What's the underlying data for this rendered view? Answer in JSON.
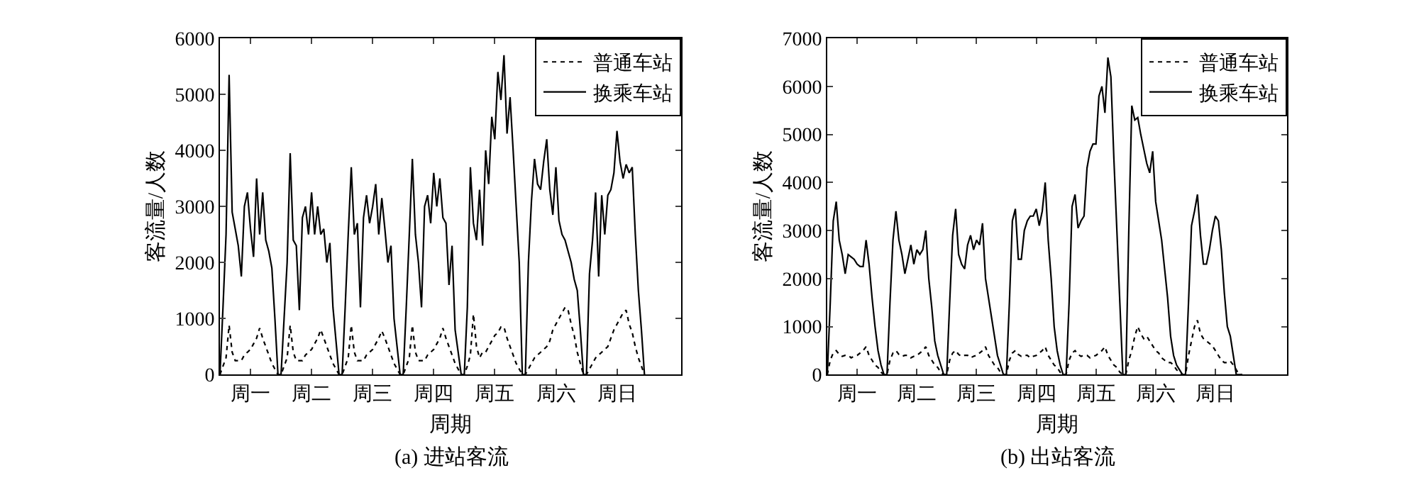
{
  "chart_data": [
    {
      "type": "line",
      "title": "(a) 进站客流",
      "xlabel": "周期",
      "ylabel": "客流量/人数",
      "ylim": [
        0,
        6000
      ],
      "categories": [
        null,
        null,
        null,
        null,
        null,
        null,
        null,
        null,
        null,
        null,
        "周一",
        null,
        null,
        null,
        null,
        null,
        null,
        null,
        null,
        null,
        null,
        null,
        null,
        null,
        null,
        null,
        null,
        null,
        null,
        null,
        "周二",
        null,
        null,
        null,
        null,
        null,
        null,
        null,
        null,
        null,
        null,
        null,
        null,
        null,
        null,
        null,
        null,
        null,
        null,
        null,
        "周三",
        null,
        null,
        null,
        null,
        null,
        null,
        null,
        null,
        null,
        null,
        null,
        null,
        null,
        null,
        null,
        null,
        null,
        null,
        null,
        "周四",
        null,
        null,
        null,
        null,
        null,
        null,
        null,
        null,
        null,
        null,
        null,
        null,
        null,
        null,
        null,
        null,
        null,
        null,
        null,
        "周五",
        null,
        null,
        null,
        null,
        null,
        null,
        null,
        null,
        null,
        null,
        null,
        null,
        null,
        null,
        null,
        null,
        null,
        null,
        null,
        "周六",
        null,
        null,
        null,
        null,
        null,
        null,
        null,
        null,
        null,
        null,
        null,
        null,
        null,
        null,
        null,
        null,
        null,
        null,
        null,
        "周日",
        null,
        null,
        null,
        null,
        null,
        null,
        null,
        null,
        null,
        null,
        null,
        null,
        null,
        null,
        null,
        null,
        null,
        null,
        null,
        null,
        null
      ],
      "yticks": [
        0,
        1000,
        2000,
        3000,
        4000,
        5000,
        6000
      ],
      "grid": false,
      "legend": "top right",
      "marker": "none",
      "series": [
        {
          "name": "普通车站",
          "color": "#000000",
          "line_style": "dotted",
          "values": [
            0,
            150,
            300,
            880,
            400,
            250,
            250,
            250,
            350,
            400,
            450,
            550,
            650,
            830,
            650,
            500,
            350,
            200,
            100,
            0,
            0,
            150,
            300,
            880,
            400,
            250,
            250,
            250,
            350,
            400,
            450,
            550,
            650,
            800,
            650,
            500,
            350,
            200,
            100,
            0,
            0,
            150,
            300,
            880,
            400,
            250,
            250,
            250,
            350,
            400,
            450,
            550,
            650,
            780,
            650,
            500,
            350,
            200,
            100,
            0,
            0,
            150,
            300,
            880,
            400,
            250,
            250,
            250,
            350,
            400,
            450,
            550,
            650,
            830,
            650,
            500,
            350,
            200,
            100,
            0,
            0,
            150,
            350,
            1080,
            500,
            300,
            400,
            400,
            500,
            600,
            700,
            750,
            850,
            850,
            650,
            500,
            350,
            200,
            100,
            0,
            0,
            100,
            200,
            300,
            350,
            400,
            450,
            500,
            600,
            800,
            900,
            1000,
            1100,
            1200,
            1150,
            900,
            700,
            400,
            200,
            0,
            0,
            100,
            200,
            300,
            350,
            400,
            450,
            500,
            650,
            800,
            900,
            1000,
            1100,
            1150,
            900,
            750,
            500,
            300,
            150,
            0,
            null,
            null,
            null,
            null,
            null,
            null,
            null,
            null,
            null,
            null,
            null,
            null
          ]
        },
        {
          "name": "换乘车站",
          "color": "#000000",
          "line_style": "solid",
          "values": [
            0,
            1200,
            2500,
            5350,
            2900,
            2600,
            2300,
            1750,
            3000,
            3250,
            2600,
            2100,
            3500,
            2500,
            3250,
            2400,
            2200,
            1900,
            1000,
            0,
            0,
            1000,
            2000,
            3950,
            2400,
            2300,
            1150,
            2800,
            3000,
            2500,
            3250,
            2500,
            3000,
            2500,
            2600,
            2000,
            2350,
            1200,
            600,
            0,
            0,
            1200,
            2500,
            3700,
            2500,
            2700,
            1200,
            2800,
            3200,
            2700,
            3000,
            3400,
            2500,
            3150,
            2600,
            2000,
            2300,
            1000,
            500,
            0,
            0,
            1200,
            2500,
            3850,
            2500,
            2000,
            1200,
            3000,
            3200,
            2700,
            3600,
            3000,
            3500,
            2800,
            2700,
            1600,
            2300,
            800,
            400,
            0,
            0,
            1200,
            3700,
            2700,
            2400,
            3300,
            2300,
            4000,
            3400,
            4600,
            4200,
            5400,
            4900,
            5700,
            4300,
            4950,
            4000,
            3000,
            2000,
            0,
            0,
            2000,
            3100,
            3850,
            3400,
            3300,
            3800,
            4200,
            3300,
            2850,
            3700,
            2750,
            2500,
            2400,
            2200,
            2000,
            1700,
            1500,
            800,
            0,
            0,
            1800,
            2400,
            3250,
            1750,
            3200,
            2500,
            3200,
            3300,
            3600,
            4350,
            3800,
            3500,
            3750,
            3600,
            3700,
            2500,
            1500,
            800,
            0,
            null,
            null,
            null,
            null,
            null,
            null,
            null,
            null,
            null,
            null,
            null,
            null
          ]
        }
      ]
    },
    {
      "type": "line",
      "title": "(b) 出站客流",
      "xlabel": "周期",
      "ylabel": "客流量/人数",
      "ylim": [
        0,
        7000
      ],
      "categories": [
        null,
        null,
        null,
        null,
        null,
        null,
        null,
        null,
        null,
        null,
        "周一",
        null,
        null,
        null,
        null,
        null,
        null,
        null,
        null,
        null,
        null,
        null,
        null,
        null,
        null,
        null,
        null,
        null,
        null,
        null,
        "周二",
        null,
        null,
        null,
        null,
        null,
        null,
        null,
        null,
        null,
        null,
        null,
        null,
        null,
        null,
        null,
        null,
        null,
        null,
        null,
        "周三",
        null,
        null,
        null,
        null,
        null,
        null,
        null,
        null,
        null,
        null,
        null,
        null,
        null,
        null,
        null,
        null,
        null,
        null,
        null,
        "周四",
        null,
        null,
        null,
        null,
        null,
        null,
        null,
        null,
        null,
        null,
        null,
        null,
        null,
        null,
        null,
        null,
        null,
        null,
        null,
        "周五",
        null,
        null,
        null,
        null,
        null,
        null,
        null,
        null,
        null,
        null,
        null,
        null,
        null,
        null,
        null,
        null,
        null,
        null,
        null,
        "周六",
        null,
        null,
        null,
        null,
        null,
        null,
        null,
        null,
        null,
        null,
        null,
        null,
        null,
        null,
        null,
        null,
        null,
        null,
        null,
        "周日",
        null,
        null,
        null,
        null,
        null,
        null,
        null,
        null,
        null,
        null,
        null,
        null,
        null,
        null,
        null,
        null,
        null,
        null,
        null,
        null,
        null,
        null,
        null,
        null
      ],
      "yticks": [
        0,
        1000,
        2000,
        3000,
        4000,
        5000,
        6000,
        7000
      ],
      "grid": false,
      "legend": "top right",
      "marker": "none",
      "series": [
        {
          "name": "普通车站",
          "color": "#000000",
          "line_style": "dotted",
          "values": [
            0,
            300,
            450,
            500,
            420,
            380,
            400,
            400,
            350,
            380,
            400,
            450,
            500,
            580,
            400,
            300,
            200,
            150,
            50,
            0,
            0,
            300,
            450,
            500,
            420,
            380,
            400,
            400,
            350,
            380,
            400,
            450,
            500,
            580,
            400,
            300,
            200,
            150,
            50,
            0,
            0,
            300,
            450,
            500,
            420,
            380,
            400,
            400,
            350,
            380,
            400,
            450,
            500,
            580,
            400,
            300,
            200,
            150,
            50,
            0,
            0,
            300,
            450,
            500,
            420,
            380,
            400,
            400,
            350,
            380,
            400,
            450,
            500,
            580,
            400,
            300,
            200,
            150,
            50,
            0,
            0,
            300,
            450,
            500,
            420,
            380,
            400,
            400,
            350,
            380,
            400,
            450,
            500,
            580,
            400,
            300,
            200,
            150,
            50,
            0,
            0,
            300,
            500,
            800,
            1000,
            850,
            750,
            800,
            700,
            600,
            500,
            450,
            350,
            300,
            250,
            250,
            200,
            100,
            50,
            0,
            0,
            400,
            700,
            1000,
            1130,
            850,
            750,
            700,
            650,
            600,
            500,
            400,
            300,
            250,
            250,
            280,
            200,
            100,
            0,
            0,
            null,
            null,
            null,
            null,
            null,
            null,
            null,
            null,
            null,
            null,
            null,
            null,
            null,
            null,
            null
          ]
        },
        {
          "name": "换乘车站",
          "color": "#000000",
          "line_style": "solid",
          "values": [
            0,
            1500,
            3200,
            3600,
            2800,
            2500,
            2100,
            2500,
            2450,
            2400,
            2300,
            2250,
            2250,
            2800,
            2300,
            1600,
            1000,
            500,
            200,
            0,
            0,
            1500,
            2800,
            3400,
            2800,
            2500,
            2100,
            2400,
            2700,
            2300,
            2600,
            2500,
            2600,
            3000,
            2000,
            1400,
            700,
            400,
            200,
            0,
            0,
            1500,
            2900,
            3450,
            2500,
            2300,
            2200,
            2700,
            2900,
            2600,
            2800,
            2700,
            3150,
            2000,
            1600,
            1200,
            800,
            400,
            200,
            0,
            0,
            1500,
            3200,
            3450,
            2400,
            2400,
            3000,
            3200,
            3300,
            3300,
            3450,
            3100,
            3400,
            4000,
            2800,
            2000,
            1000,
            500,
            200,
            0,
            0,
            1500,
            3500,
            3750,
            3050,
            3200,
            3300,
            4300,
            4650,
            4800,
            4800,
            5800,
            6000,
            5450,
            6600,
            6200,
            4500,
            3000,
            1500,
            0,
            0,
            3000,
            5600,
            5300,
            5350,
            5000,
            4700,
            4400,
            4200,
            4650,
            3600,
            3200,
            2800,
            2200,
            1600,
            800,
            400,
            200,
            100,
            0,
            0,
            1500,
            3100,
            3400,
            3750,
            2900,
            2300,
            2300,
            2600,
            3000,
            3300,
            3200,
            2600,
            1700,
            1000,
            800,
            400,
            0,
            0,
            0,
            null,
            null,
            null,
            null,
            null,
            null,
            null,
            null,
            null,
            null,
            null,
            null,
            null,
            null,
            null
          ]
        }
      ]
    }
  ]
}
